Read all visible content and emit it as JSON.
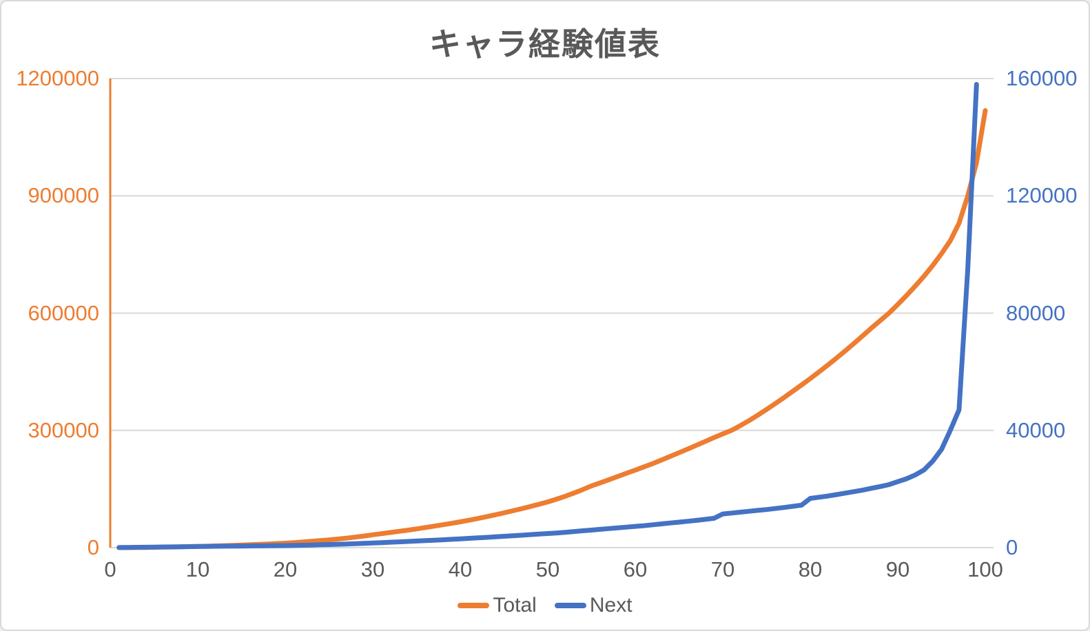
{
  "chart_data": {
    "type": "line",
    "title": "キャラ経験値表",
    "grid": true,
    "legend_position": "bottom",
    "colors": {
      "orange": "#ed7d31",
      "blue": "#4472c4",
      "gridline": "#d9d9d9",
      "text_gray": "#595959"
    },
    "x": {
      "min": 0,
      "max": 100,
      "ticks": [
        0,
        10,
        20,
        30,
        40,
        50,
        60,
        70,
        80,
        90,
        100
      ]
    },
    "y_left": {
      "min": 0,
      "max": 1200000,
      "ticks": [
        0,
        300000,
        600000,
        900000,
        1200000
      ],
      "color": "#ed7d31"
    },
    "y_right": {
      "min": 0,
      "max": 160000,
      "ticks": [
        0,
        40000,
        80000,
        120000,
        160000
      ],
      "color": "#4472c4"
    },
    "series": [
      {
        "name": "Total",
        "axis": "left",
        "color": "#ed7d31",
        "x_start": 1,
        "values": [
          0,
          150,
          350,
          600,
          900,
          1250,
          1650,
          2100,
          2600,
          3150,
          3750,
          4400,
          5100,
          5850,
          6650,
          7500,
          8400,
          9350,
          10350,
          11400,
          12900,
          14500,
          16200,
          18000,
          19900,
          22000,
          24300,
          26900,
          29800,
          33000,
          35800,
          38700,
          41700,
          44800,
          48000,
          51400,
          54900,
          58500,
          62200,
          66000,
          70200,
          74600,
          79200,
          84000,
          89000,
          94200,
          99600,
          105200,
          111000,
          117000,
          124000,
          131500,
          139800,
          148600,
          158000,
          165900,
          173900,
          182000,
          190300,
          198500,
          206700,
          215000,
          224200,
          233500,
          242900,
          252400,
          262000,
          271700,
          281500,
          291000,
          300000,
          312000,
          325000,
          338800,
          353400,
          368500,
          384000,
          400000,
          416000,
          432500,
          449500,
          467000,
          485000,
          503500,
          522500,
          542000,
          562000,
          581000,
          600000,
          622000,
          645000,
          669000,
          694500,
          722000,
          752000,
          785000,
          830000,
          900000,
          985000,
          1118000
        ]
      },
      {
        "name": "Next",
        "axis": "right",
        "color": "#4472c4",
        "x_start": 1,
        "values": [
          50,
          80,
          110,
          150,
          190,
          230,
          270,
          310,
          355,
          400,
          430,
          460,
          490,
          520,
          550,
          580,
          610,
          640,
          670,
          700,
          760,
          830,
          900,
          980,
          1060,
          1150,
          1250,
          1360,
          1480,
          1600,
          1720,
          1850,
          1980,
          2110,
          2250,
          2390,
          2540,
          2690,
          2840,
          3000,
          3170,
          3340,
          3510,
          3690,
          3870,
          4050,
          4240,
          4430,
          4620,
          4810,
          5000,
          5250,
          5500,
          5750,
          6000,
          6250,
          6500,
          6750,
          7000,
          7250,
          7500,
          7800,
          8100,
          8400,
          8700,
          9000,
          9300,
          9650,
          10000,
          11500,
          11800,
          12100,
          12400,
          12700,
          13000,
          13350,
          13700,
          14100,
          14500,
          16800,
          17200,
          17600,
          18100,
          18600,
          19100,
          19650,
          20250,
          20850,
          21500,
          22500,
          23500,
          24800,
          26500,
          29500,
          33500,
          40000,
          47000,
          95000,
          158000
        ]
      }
    ]
  }
}
